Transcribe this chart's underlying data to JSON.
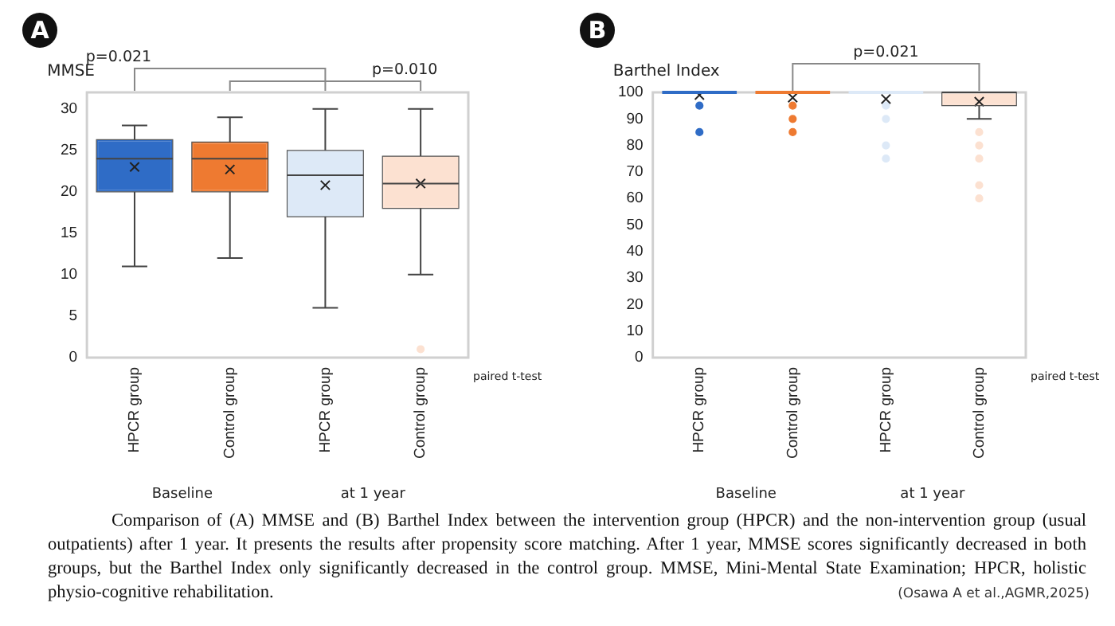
{
  "chart_data": [
    {
      "type": "box",
      "title": "A",
      "ylabel": "MMSE",
      "categories": [
        "HPCR group",
        "Control group",
        "HPCR group",
        "Control group"
      ],
      "colors": [
        "#2f6cc6",
        "#ee7a31",
        "#dde9f7",
        "#fce1d1"
      ],
      "boxes": [
        {
          "low": 11,
          "q1": 20,
          "median": 24,
          "q3": 26.3,
          "high": 28,
          "mean": 23
        },
        {
          "low": 12,
          "q1": 20,
          "median": 24,
          "q3": 26,
          "high": 29,
          "mean": 22.7
        },
        {
          "low": 6,
          "q1": 17,
          "median": 22,
          "q3": 25,
          "high": 30,
          "mean": 20.8
        },
        {
          "low": 10,
          "q1": 18,
          "median": 21,
          "q3": 24.3,
          "high": 30,
          "mean": 21,
          "outliers": [
            1
          ]
        }
      ],
      "ylim": [
        0,
        32
      ],
      "yticks": [
        0,
        5,
        10,
        15,
        20,
        25,
        30
      ],
      "grid": false,
      "legend": false,
      "annotations": [
        "paired t-test",
        "Baseline",
        "at 1 year",
        "p=0.021",
        "p=0.010"
      ]
    },
    {
      "type": "box",
      "title": "B",
      "ylabel": "Barthel Index",
      "categories": [
        "HPCR group",
        "Control group",
        "HPCR group",
        "Control group"
      ],
      "colors": [
        "#2f6cc6",
        "#ee7a31",
        "#dde9f7",
        "#fce1d1"
      ],
      "boxes": [
        {
          "low": 100,
          "q1": 100,
          "median": 100,
          "q3": 100,
          "high": 100,
          "mean": 99,
          "outliers": [
            95,
            85
          ]
        },
        {
          "low": 100,
          "q1": 100,
          "median": 100,
          "q3": 100,
          "high": 100,
          "mean": 98,
          "outliers": [
            95,
            90,
            85
          ]
        },
        {
          "low": 100,
          "q1": 100,
          "median": 100,
          "q3": 100,
          "high": 100,
          "mean": 97.5,
          "outliers": [
            95,
            90,
            80,
            75
          ]
        },
        {
          "low": 90,
          "q1": 95,
          "median": 100,
          "q3": 100,
          "high": 100,
          "mean": 96.5,
          "outliers": [
            85,
            80,
            75,
            65,
            60
          ]
        }
      ],
      "ylim": [
        0,
        100
      ],
      "yticks": [
        0,
        10,
        20,
        30,
        40,
        50,
        60,
        70,
        80,
        90,
        100
      ],
      "grid": false,
      "legend": false,
      "annotations": [
        "paired t-test",
        "Baseline",
        "at 1 year",
        "p=0.021"
      ]
    },
    {
      "type": "other",
      "annotations": [
        "Comparison of (A) MMSE and (B) Barthel Index between the intervention group (HPCR) and the non-intervention group (usual outpatients) after 1 year. It presents the results after propensity score matching. After 1 year, MMSE scores significantly decreased in both groups, but the Barthel Index only significantly decreased in the control group. MMSE, Mini-Mental State Examination; HPCR, holistic physio-cognitive rehabilitation.",
        "(Osawa A et al.,AGMR,2025)"
      ]
    }
  ]
}
